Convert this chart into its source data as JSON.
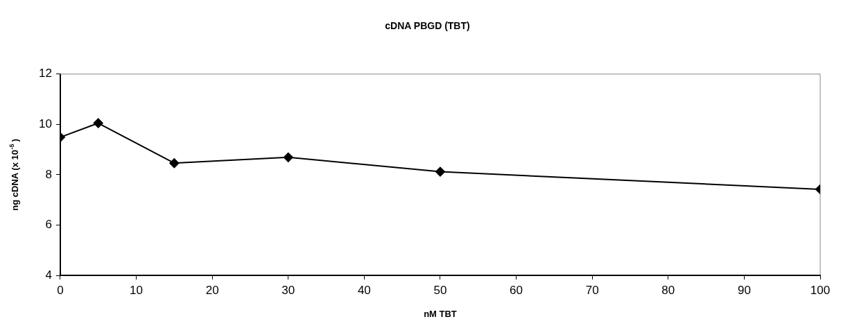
{
  "chart_data": {
    "type": "line",
    "title": "cDNA PBGD (TBT)",
    "xlabel": "nM TBT",
    "ylabel": "ng cDNA (x 10$^{-5}$)",
    "x": [
      0,
      5,
      15,
      30,
      50,
      100
    ],
    "series": [
      {
        "color": "#000000",
        "values": [
          9.49,
          10.05,
          8.46,
          8.69,
          8.12,
          7.42
        ]
      }
    ],
    "xlim": [
      0,
      100
    ],
    "xticks": [
      0,
      10,
      20,
      30,
      40,
      50,
      60,
      70,
      80,
      90,
      100
    ],
    "ylim": [
      4,
      12
    ],
    "yticks": [
      4,
      6,
      8,
      10,
      12
    ],
    "grid": false,
    "legend": false,
    "marker": "diamond",
    "line_style": "solid"
  }
}
